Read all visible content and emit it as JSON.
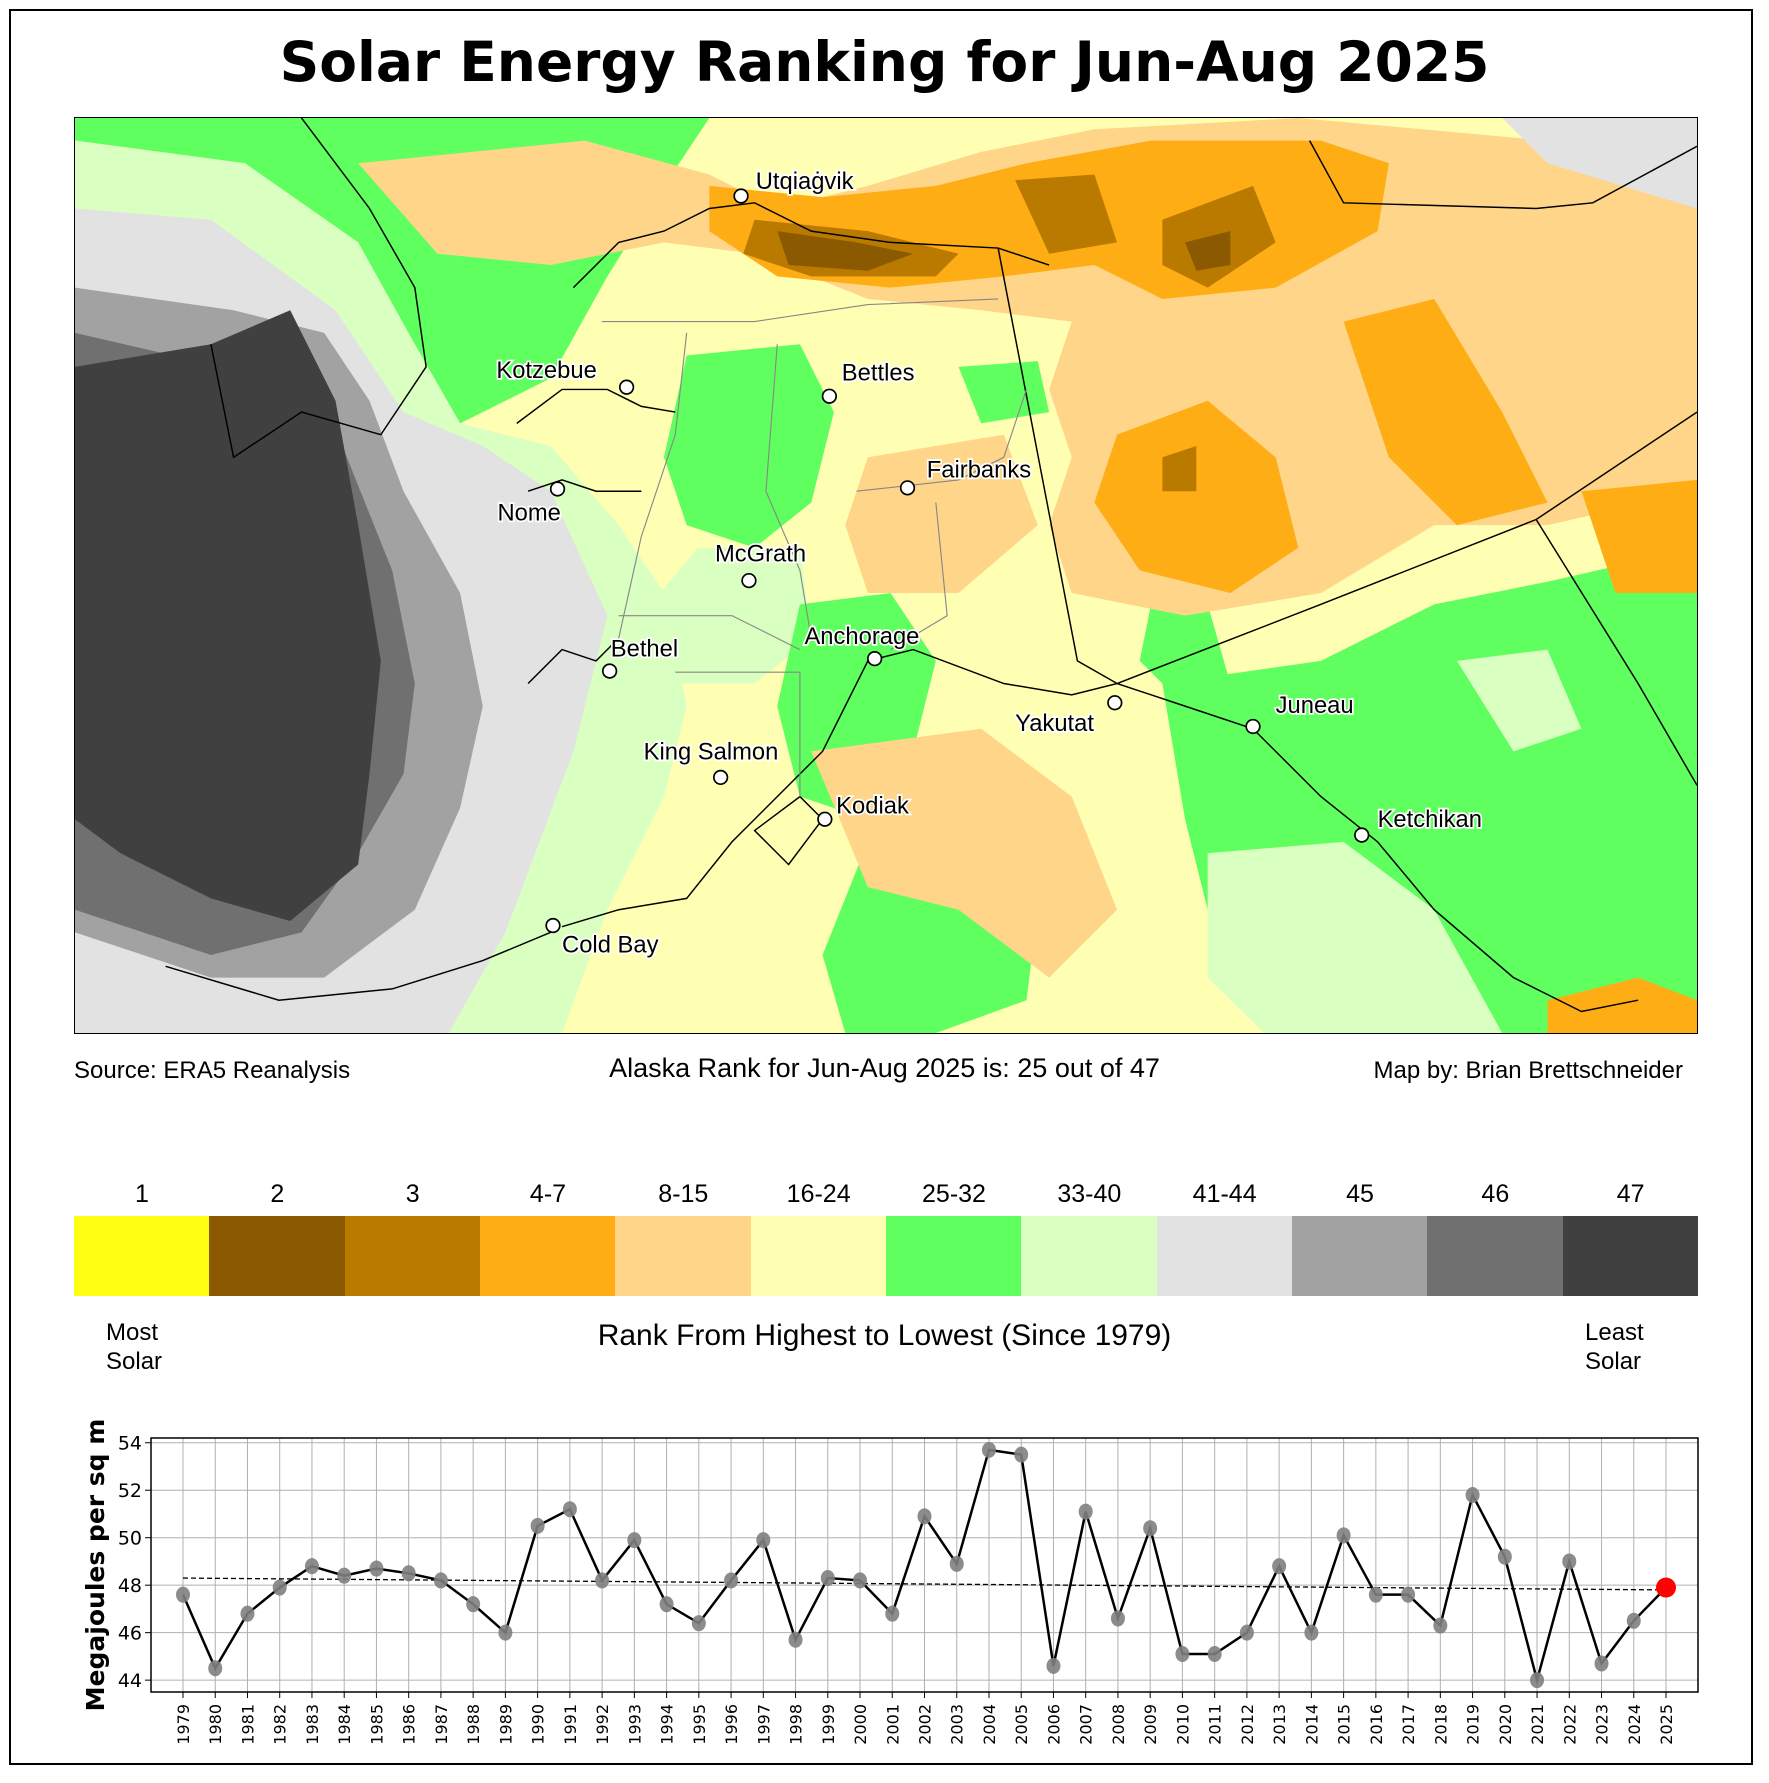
{
  "title": "Solar Energy Ranking for Jun-Aug 2025",
  "source": "Source: ERA5 Reanalysis",
  "rank_statement": "Alaska Rank for Jun-Aug 2025 is: 25 out of 47",
  "credit": "Map by: Brian Brettschneider",
  "cities": [
    {
      "name": "Utqiaġvik"
    },
    {
      "name": "Kotzebue"
    },
    {
      "name": "Bettles"
    },
    {
      "name": "Fairbanks"
    },
    {
      "name": "Nome"
    },
    {
      "name": "McGrath"
    },
    {
      "name": "Bethel"
    },
    {
      "name": "Anchorage"
    },
    {
      "name": "Yakutat"
    },
    {
      "name": "Juneau"
    },
    {
      "name": "King Salmon"
    },
    {
      "name": "Kodiak"
    },
    {
      "name": "Ketchikan"
    },
    {
      "name": "Cold Bay"
    }
  ],
  "legend": {
    "title": "Rank From Highest to Lowest (Since 1979)",
    "left_note": "Most Solar",
    "left_note_1": "Most",
    "left_note_2": "Solar",
    "right_note_1": "Least",
    "right_note_2": "Solar",
    "bins": [
      {
        "label": "1",
        "color": "#ffff14"
      },
      {
        "label": "2",
        "color": "#8b5a00"
      },
      {
        "label": "3",
        "color": "#ba7a00"
      },
      {
        "label": "4-7",
        "color": "#ffad14"
      },
      {
        "label": "8-15",
        "color": "#ffd589"
      },
      {
        "label": "16-24",
        "color": "#ffffb4"
      },
      {
        "label": "25-32",
        "color": "#5eff5e"
      },
      {
        "label": "33-40",
        "color": "#d9ffc1"
      },
      {
        "label": "41-44",
        "color": "#e2e2e2"
      },
      {
        "label": "45",
        "color": "#a2a2a2"
      },
      {
        "label": "46",
        "color": "#707070"
      },
      {
        "label": "47",
        "color": "#404040"
      }
    ]
  },
  "chart_data": {
    "type": "line",
    "title": "",
    "xlabel": "",
    "ylabel": "Megajoules per sq m",
    "ylim": [
      43.5,
      54.2
    ],
    "yticks": [
      44,
      46,
      48,
      50,
      52,
      54
    ],
    "grid": true,
    "x": [
      1979,
      1980,
      1981,
      1982,
      1983,
      1984,
      1985,
      1986,
      1987,
      1988,
      1989,
      1990,
      1991,
      1992,
      1993,
      1994,
      1995,
      1996,
      1997,
      1998,
      1999,
      2000,
      2001,
      2002,
      2003,
      2004,
      2005,
      2006,
      2007,
      2008,
      2009,
      2010,
      2011,
      2012,
      2013,
      2014,
      2015,
      2016,
      2017,
      2018,
      2019,
      2020,
      2021,
      2022,
      2023,
      2024,
      2025
    ],
    "series": [
      {
        "name": "Jun-Aug solar energy",
        "color": "#000000",
        "marker_color": "#808080",
        "values": [
          47.6,
          44.5,
          46.8,
          47.9,
          48.8,
          48.4,
          48.7,
          48.5,
          48.2,
          47.2,
          46.0,
          50.5,
          51.2,
          48.2,
          49.9,
          47.2,
          46.4,
          48.2,
          49.9,
          45.7,
          48.3,
          48.2,
          46.8,
          50.9,
          48.9,
          53.7,
          53.5,
          44.6,
          51.1,
          46.6,
          50.4,
          45.1,
          45.1,
          46.0,
          48.8,
          46.0,
          50.1,
          47.6,
          47.6,
          46.3,
          51.8,
          49.2,
          44.0,
          49.0,
          44.7,
          46.5,
          47.9
        ]
      },
      {
        "name": "trend",
        "style": "dashed",
        "color": "#000000",
        "x": [
          1979,
          2025
        ],
        "values": [
          48.3,
          47.8
        ]
      }
    ],
    "highlight": {
      "x": 2025,
      "value": 47.9,
      "color": "#ff0000"
    }
  }
}
